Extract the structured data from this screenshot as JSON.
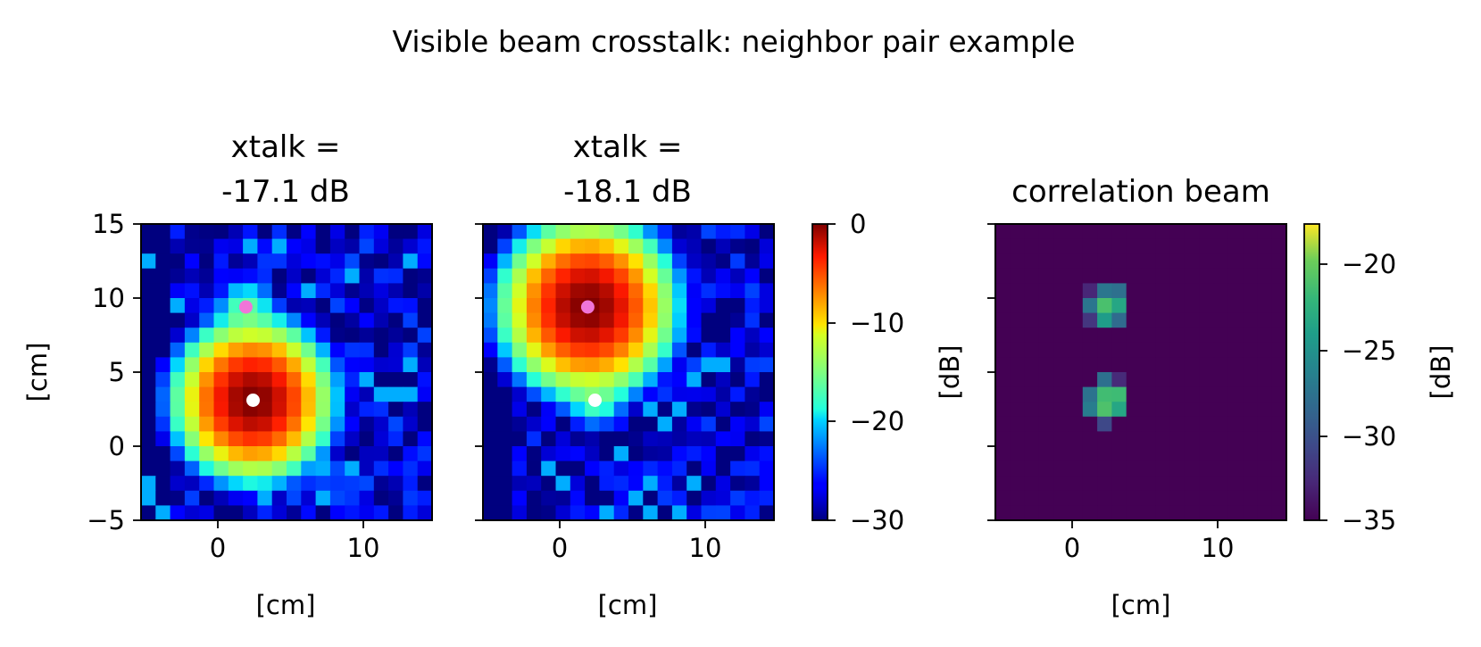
{
  "figure": {
    "title": "Visible beam crosstalk: neighbor pair example"
  },
  "chart_data": [
    {
      "type": "heatmap",
      "title_lines": [
        "xtalk =",
        "-17.1 dB"
      ],
      "xlabel": "[cm]",
      "ylabel": "[cm]",
      "xlim": [
        -5,
        15
      ],
      "ylim": [
        -5,
        15
      ],
      "xticks": [
        "0",
        "10"
      ],
      "yticks": [
        "15",
        "10",
        "5",
        "0",
        "−5"
      ],
      "colormap": "jet",
      "clim": [
        -30,
        0
      ],
      "grid": false,
      "peak_db": 0,
      "primary_beam": {
        "x": 2.7,
        "y": 3.1,
        "sigma_cm": 1.9
      },
      "secondary_beam": {
        "x": 2.2,
        "y": 9.4,
        "level_db": -17.1
      },
      "markers": [
        {
          "name": "target",
          "x": 2.7,
          "y": 3.1,
          "color": "#ffffff"
        },
        {
          "name": "neighbor",
          "x": 2.2,
          "y": 9.4,
          "color": "#f075d8"
        }
      ]
    },
    {
      "type": "heatmap",
      "title_lines": [
        "xtalk =",
        "-18.1 dB"
      ],
      "xlabel": "[cm]",
      "ylabel": "",
      "xlim": [
        -5,
        15
      ],
      "ylim": [
        -5,
        15
      ],
      "xticks": [
        "0",
        "10"
      ],
      "colormap": "jet",
      "clim": [
        -30,
        0
      ],
      "grid": false,
      "peak_db": 0,
      "primary_beam": {
        "x": 2.2,
        "y": 9.4,
        "sigma_cm": 2.1
      },
      "secondary_beam": {
        "x": 2.7,
        "y": 3.1,
        "level_db": -18.1
      },
      "markers": [
        {
          "name": "target",
          "x": 2.7,
          "y": 3.1,
          "color": "#ffffff"
        },
        {
          "name": "neighbor",
          "x": 2.2,
          "y": 9.4,
          "color": "#f075d8"
        }
      ],
      "colorbar": {
        "label": "[dB]",
        "ticks": [
          "0",
          "−10",
          "−20",
          "−30"
        ],
        "range": [
          -30,
          0
        ]
      }
    },
    {
      "type": "heatmap",
      "title_lines": [
        "correlation beam"
      ],
      "xlabel": "[cm]",
      "ylabel": "",
      "xlim": [
        -5,
        15
      ],
      "ylim": [
        -5,
        15
      ],
      "xticks": [
        "0",
        "10"
      ],
      "colormap": "viridis",
      "clim": [
        -35,
        -18
      ],
      "grid": false,
      "background_db": -35,
      "blobs": [
        {
          "x": 2.7,
          "y": 9.4,
          "peak_db": -19
        },
        {
          "x": 2.7,
          "y": 3.1,
          "peak_db": -18
        }
      ],
      "colorbar": {
        "label": "[dB]",
        "ticks": [
          "−20",
          "−25",
          "−30",
          "−35"
        ],
        "range": [
          -35,
          -18
        ]
      }
    }
  ]
}
